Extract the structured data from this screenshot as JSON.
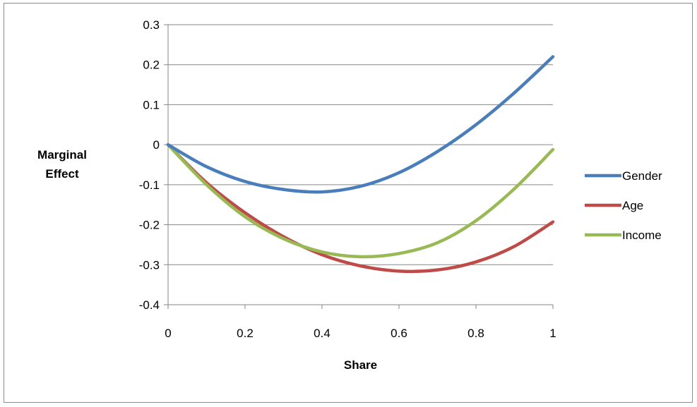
{
  "chart_data": {
    "type": "line",
    "title": "",
    "xlabel": "Share",
    "ylabel": [
      "Marginal",
      "Effect"
    ],
    "xlim": [
      0,
      1
    ],
    "ylim": [
      -0.4,
      0.3
    ],
    "grid": "horizontal",
    "legend_position": "right",
    "x_ticks": [
      "0",
      "0.2",
      "0.4",
      "0.6",
      "0.8",
      "1"
    ],
    "y_ticks": [
      "0.3",
      "0.2",
      "0.1",
      "0",
      "-0.1",
      "-0.2",
      "-0.3",
      "-0.4"
    ],
    "x": [
      0,
      0.1,
      0.2,
      0.3,
      0.4,
      0.5,
      0.6,
      0.7,
      0.8,
      0.9,
      1
    ],
    "series": [
      {
        "name": "Gender",
        "color": "#4a7ebb",
        "values": [
          0,
          -0.055,
          -0.092,
          -0.112,
          -0.118,
          -0.104,
          -0.07,
          -0.017,
          0.05,
          0.13,
          0.22
        ]
      },
      {
        "name": "Age",
        "color": "#be4b48",
        "values": [
          0,
          -0.095,
          -0.17,
          -0.23,
          -0.275,
          -0.303,
          -0.316,
          -0.313,
          -0.293,
          -0.254,
          -0.193
        ]
      },
      {
        "name": "Income",
        "color": "#98b954",
        "values": [
          0,
          -0.1,
          -0.18,
          -0.235,
          -0.268,
          -0.28,
          -0.272,
          -0.245,
          -0.19,
          -0.11,
          -0.012
        ]
      }
    ]
  }
}
